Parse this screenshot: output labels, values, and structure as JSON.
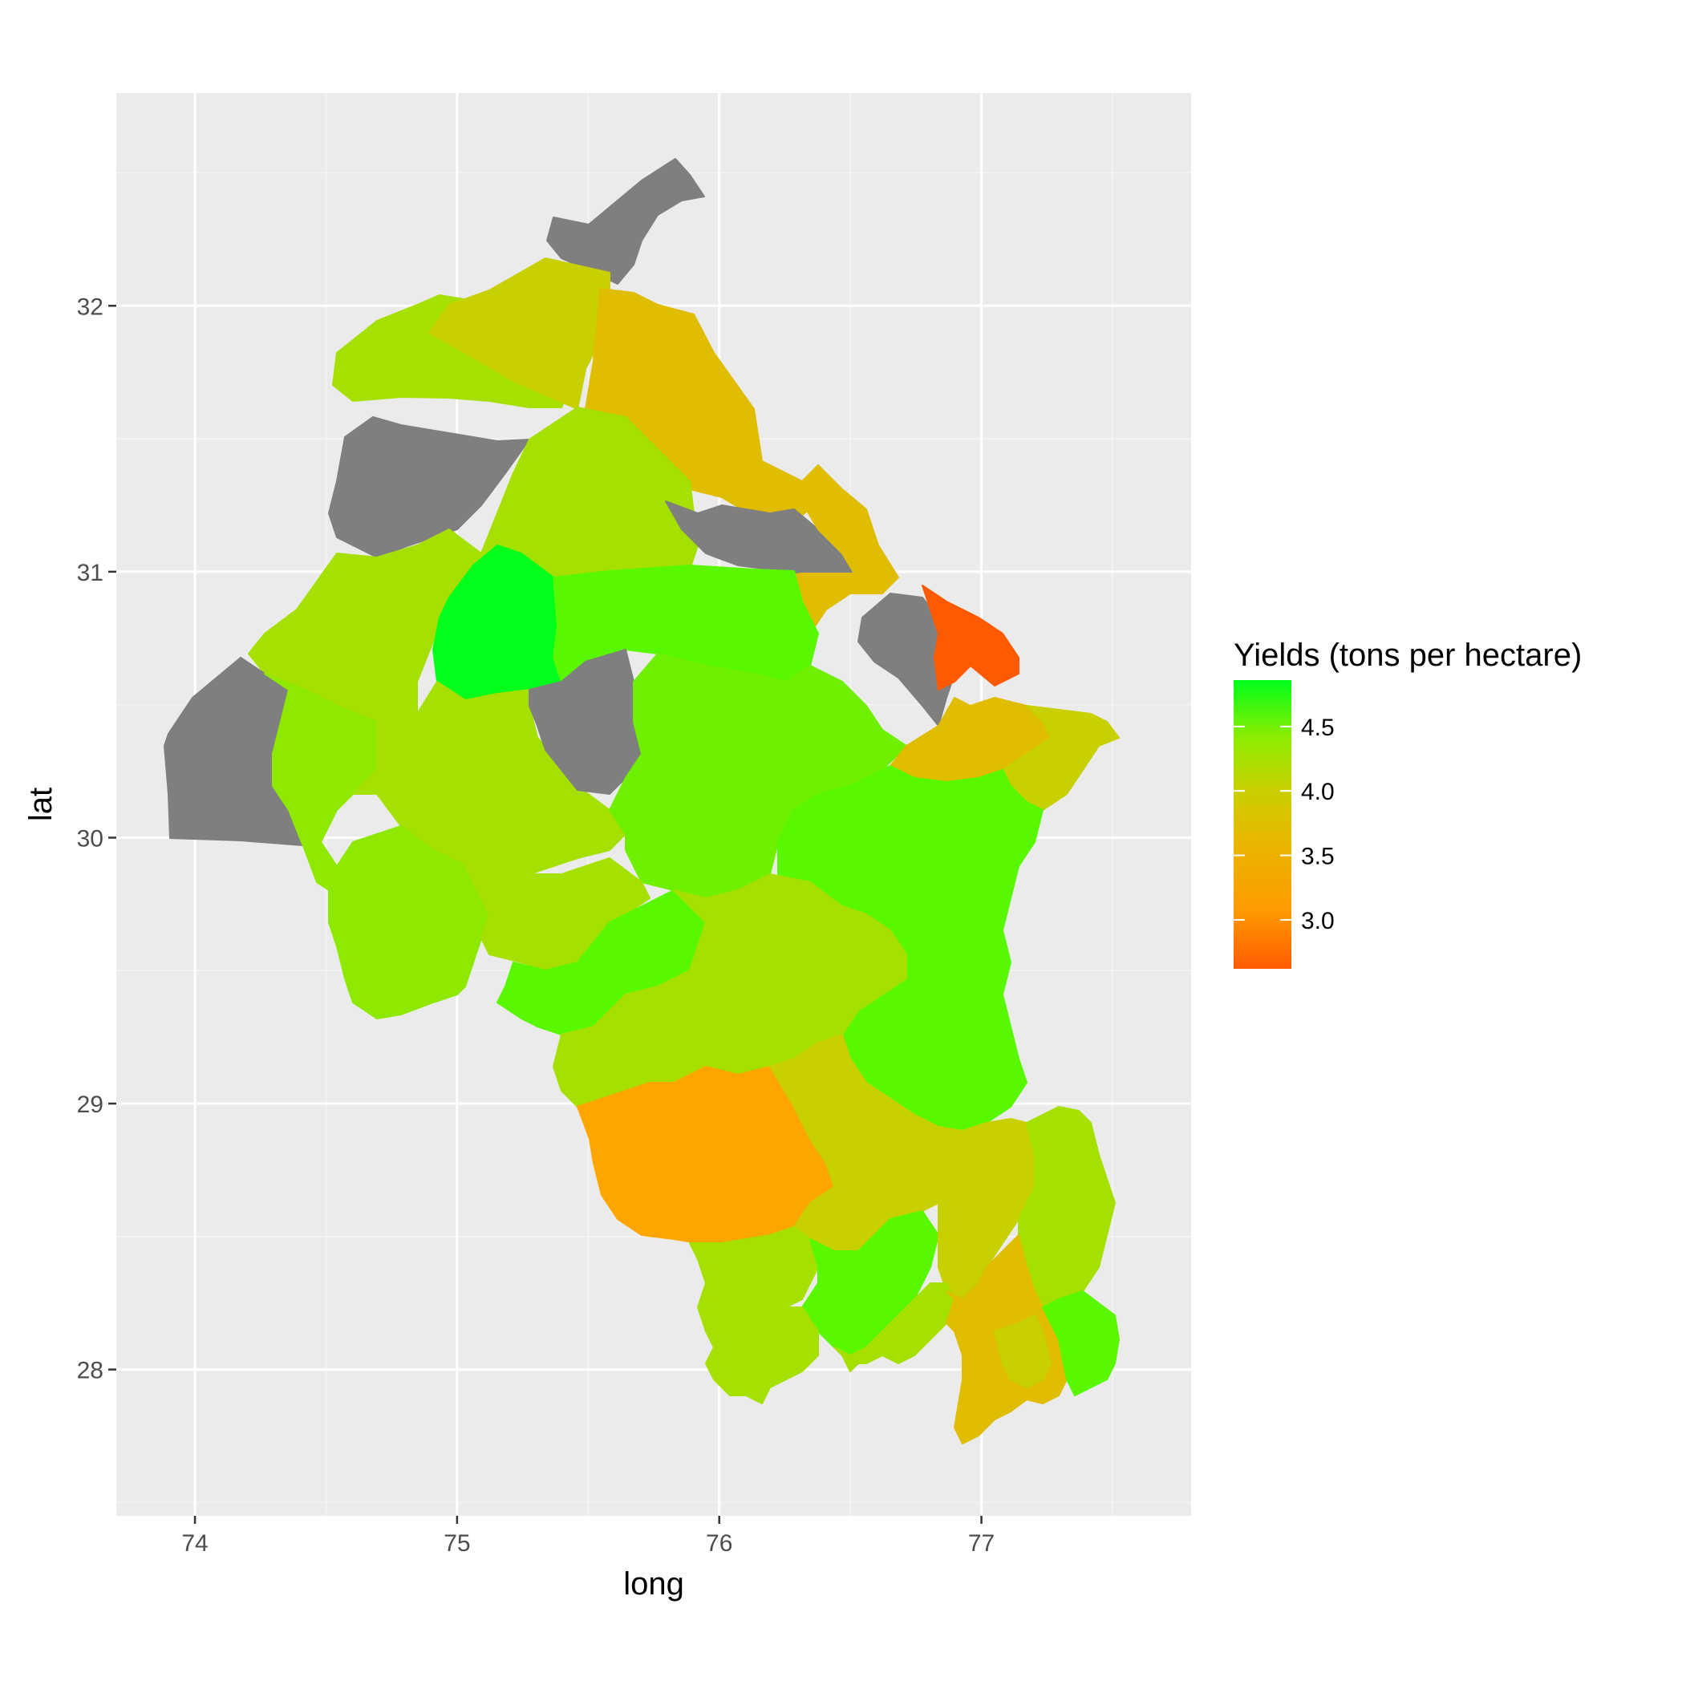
{
  "chart_data": {
    "type": "choropleth",
    "xlabel": "long",
    "ylabel": "lat",
    "xlim": [
      73.7,
      77.8
    ],
    "ylim": [
      27.45,
      32.8
    ],
    "x_ticks": [
      74,
      75,
      76,
      77
    ],
    "x_tick_labels": [
      "74",
      "75",
      "76",
      "77"
    ],
    "y_ticks": [
      28,
      29,
      30,
      31,
      32
    ],
    "y_tick_labels": [
      "28",
      "29",
      "30",
      "31",
      "32"
    ],
    "grid": true,
    "legend": {
      "title": "Yields (tons per hectare)",
      "placement": "right",
      "breaks": [
        3.0,
        3.5,
        4.0,
        4.5
      ],
      "break_labels": [
        "3.0",
        "3.5",
        "4.0",
        "4.5"
      ],
      "range": [
        2.62,
        4.86
      ],
      "low_color": "#FF5A00",
      "mid_colors": [
        "#FFA500",
        "#D4C800",
        "#A8E000"
      ],
      "high_color": "#00FF1A",
      "na_color": "#7F7F7F"
    },
    "colors": {
      "panel_background": "#EBEBEB",
      "grid_major": "#FFFFFF",
      "grid_minor": "#F5F5F5",
      "missing": "#7F7F7F"
    }
  }
}
